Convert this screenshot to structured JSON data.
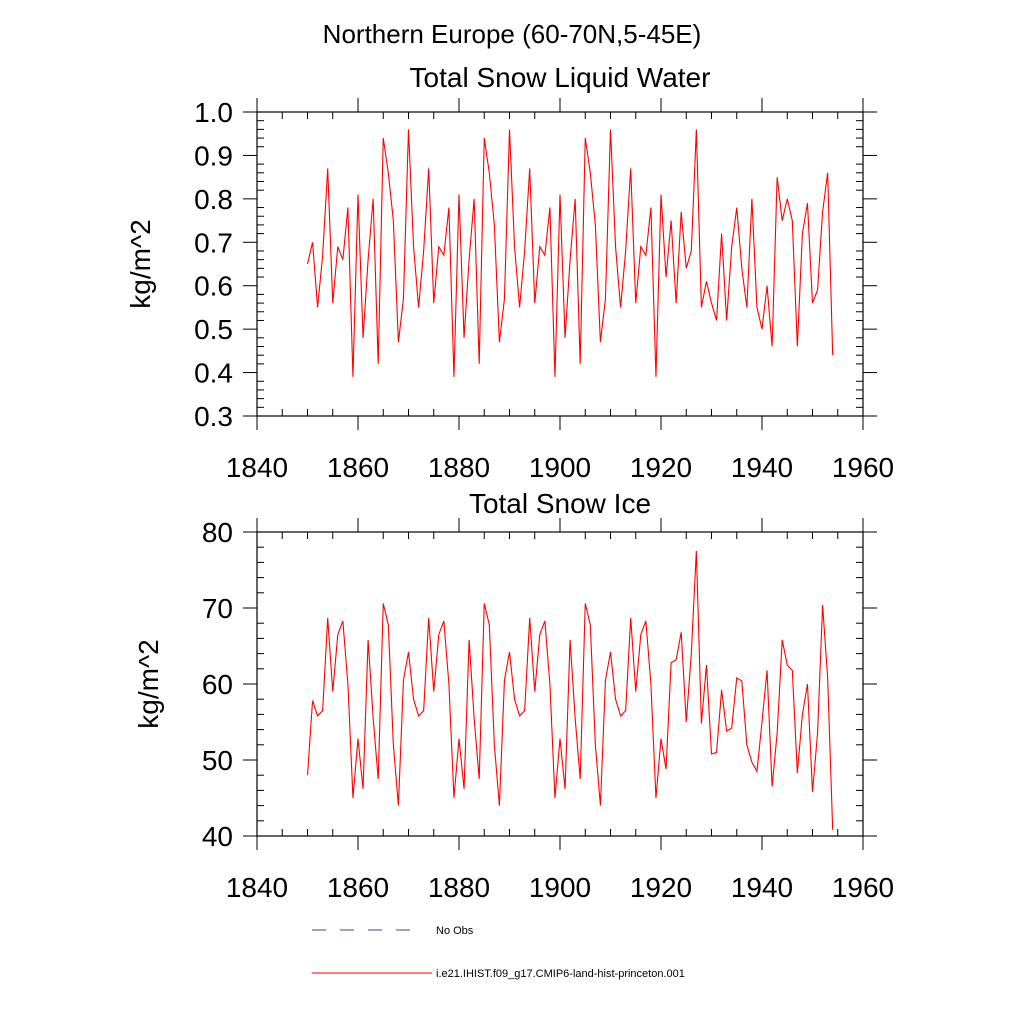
{
  "figure": {
    "title": "Northern Europe (60-70N,5-45E)"
  },
  "legend": {
    "entries": [
      {
        "label": "No Obs",
        "color": "#3b4a8c",
        "dash": "dashed"
      },
      {
        "label": "i.e21.IHIST.f09_g17.CMIP6-land-hist-princeton.001",
        "color": "#ff0000",
        "dash": "solid"
      }
    ]
  },
  "chart_data": [
    {
      "type": "line",
      "title": "Total Snow Liquid Water",
      "xlabel": "",
      "ylabel": "kg/m^2",
      "xlim": [
        1840,
        1960
      ],
      "ylim": [
        0.3,
        1.0
      ],
      "xticks": [
        1840,
        1860,
        1880,
        1900,
        1920,
        1940,
        1960
      ],
      "yticks": [
        0.3,
        0.4,
        0.5,
        0.6,
        0.7,
        0.8,
        0.9,
        1.0
      ],
      "ytick_labels": [
        "0.3",
        "0.4",
        "0.5",
        "0.6",
        "0.7",
        "0.8",
        "0.9",
        "1.0"
      ],
      "grid": false,
      "x_start": 1850,
      "series": [
        {
          "name": "i.e21.IHIST.f09_g17.CMIP6-land-hist-princeton.001",
          "color": "#ff0000",
          "values": [
            0.65,
            0.7,
            0.55,
            0.67,
            0.87,
            0.56,
            0.69,
            0.66,
            0.78,
            0.39,
            0.81,
            0.48,
            0.66,
            0.8,
            0.42,
            0.94,
            0.86,
            0.75,
            0.47,
            0.57,
            0.96,
            0.69,
            0.55,
            0.68,
            0.87,
            0.56,
            0.69,
            0.67,
            0.78,
            0.39,
            0.81,
            0.48,
            0.66,
            0.8,
            0.42,
            0.94,
            0.86,
            0.74,
            0.47,
            0.57,
            0.96,
            0.69,
            0.55,
            0.68,
            0.87,
            0.56,
            0.69,
            0.67,
            0.78,
            0.39,
            0.81,
            0.48,
            0.66,
            0.8,
            0.42,
            0.94,
            0.86,
            0.74,
            0.47,
            0.57,
            0.96,
            0.69,
            0.55,
            0.68,
            0.87,
            0.56,
            0.69,
            0.67,
            0.78,
            0.39,
            0.81,
            0.62,
            0.75,
            0.56,
            0.77,
            0.64,
            0.68,
            0.96,
            0.55,
            0.61,
            0.56,
            0.52,
            0.72,
            0.52,
            0.69,
            0.78,
            0.64,
            0.55,
            0.8,
            0.55,
            0.5,
            0.6,
            0.46,
            0.85,
            0.75,
            0.8,
            0.75,
            0.46,
            0.72,
            0.79,
            0.56,
            0.59,
            0.77,
            0.86,
            0.44
          ]
        }
      ]
    },
    {
      "type": "line",
      "title": "Total Snow Ice",
      "xlabel": "",
      "ylabel": "kg/m^2",
      "xlim": [
        1840,
        1960
      ],
      "ylim": [
        40,
        80
      ],
      "xticks": [
        1840,
        1860,
        1880,
        1900,
        1920,
        1940,
        1960
      ],
      "yticks": [
        40,
        50,
        60,
        70,
        80
      ],
      "ytick_labels": [
        "40",
        "50",
        "60",
        "70",
        "80"
      ],
      "grid": false,
      "x_start": 1850,
      "series": [
        {
          "name": "i.e21.IHIST.f09_g17.CMIP6-land-hist-princeton.001",
          "color": "#ff0000",
          "values": [
            48.0,
            57.8,
            55.8,
            56.5,
            68.7,
            59.0,
            66.5,
            68.3,
            60.0,
            45.0,
            52.8,
            46.2,
            65.8,
            55.5,
            47.5,
            70.6,
            67.8,
            52.0,
            44.0,
            60.5,
            64.2,
            58.0,
            55.8,
            56.5,
            68.7,
            59.0,
            66.5,
            68.3,
            60.0,
            45.0,
            52.8,
            46.2,
            65.8,
            55.5,
            47.5,
            70.6,
            67.8,
            52.0,
            44.0,
            60.5,
            64.2,
            58.0,
            55.8,
            56.5,
            68.7,
            59.0,
            66.5,
            68.3,
            60.0,
            45.0,
            52.8,
            46.2,
            65.8,
            55.5,
            47.5,
            70.6,
            67.8,
            52.0,
            44.0,
            60.5,
            64.2,
            58.0,
            55.8,
            56.5,
            68.7,
            59.0,
            66.5,
            68.3,
            60.0,
            45.0,
            52.8,
            48.8,
            62.8,
            63.2,
            66.8,
            55.0,
            64.0,
            77.5,
            54.8,
            62.5,
            50.8,
            51.0,
            59.2,
            53.8,
            54.2,
            60.8,
            60.4,
            52.0,
            49.7,
            48.5,
            55.0,
            61.8,
            46.5,
            53.5,
            65.8,
            62.5,
            61.8,
            48.3,
            56.0,
            60.0,
            45.8,
            53.5,
            70.4,
            60.8,
            40.8
          ]
        }
      ]
    }
  ]
}
